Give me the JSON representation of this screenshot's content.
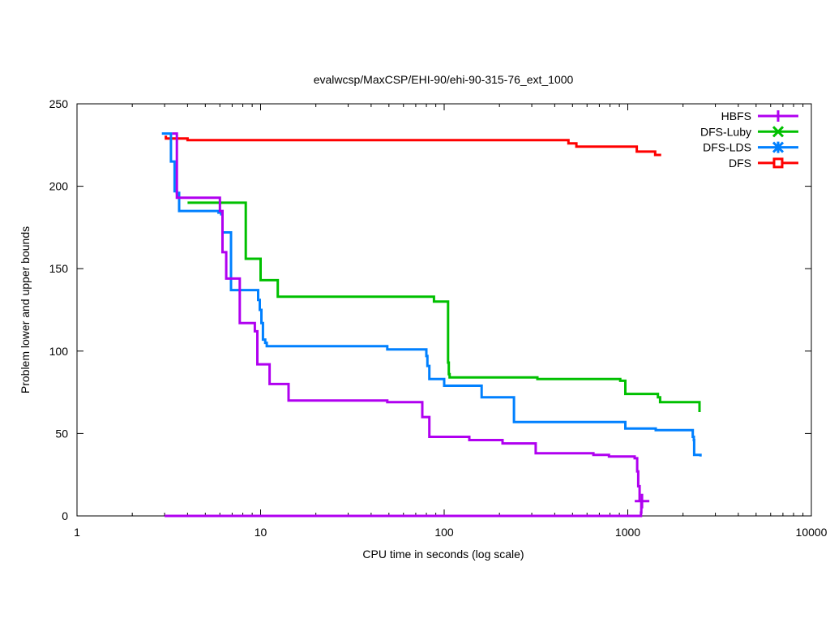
{
  "chart_data": {
    "type": "line",
    "title": "evalwcsp/MaxCSP/EHI-90/ehi-90-315-76_ext_1000",
    "xlabel": "CPU time in seconds (log scale)",
    "ylabel": "Problem lower and upper bounds",
    "xscale": "log",
    "xlim": [
      1,
      10000
    ],
    "ylim": [
      0,
      250
    ],
    "xticks": [
      1,
      10,
      100,
      1000,
      10000
    ],
    "xtick_labels": [
      "1",
      "10",
      "100",
      "1000",
      "10000"
    ],
    "yticks": [
      0,
      50,
      100,
      150,
      200,
      250
    ],
    "ytick_labels": [
      "0",
      "50",
      "100",
      "150",
      "200",
      "250"
    ],
    "grid": false,
    "legend_position": "top-right",
    "series": [
      {
        "name": "HBFS",
        "color": "#b000f0",
        "marker": "plus",
        "step": true,
        "upper": [
          [
            3.3,
            232
          ],
          [
            3.5,
            193
          ],
          [
            5.8,
            193
          ],
          [
            6.0,
            185
          ],
          [
            6.2,
            160
          ],
          [
            6.5,
            144
          ],
          [
            7.6,
            144
          ],
          [
            7.7,
            117
          ],
          [
            9.1,
            117
          ],
          [
            9.3,
            112
          ],
          [
            9.6,
            92
          ],
          [
            11.0,
            92
          ],
          [
            11.2,
            80
          ],
          [
            14.0,
            80
          ],
          [
            14.2,
            70
          ],
          [
            48,
            70
          ],
          [
            49,
            69
          ],
          [
            75,
            69
          ],
          [
            76,
            60
          ],
          [
            82,
            60
          ],
          [
            83,
            48
          ],
          [
            135,
            48
          ],
          [
            137,
            46
          ],
          [
            205,
            46
          ],
          [
            208,
            44
          ],
          [
            310,
            44
          ],
          [
            315,
            38
          ],
          [
            640,
            38
          ],
          [
            650,
            37
          ],
          [
            770,
            37
          ],
          [
            790,
            36
          ],
          [
            1080,
            36
          ],
          [
            1090,
            35
          ],
          [
            1120,
            35
          ],
          [
            1125,
            27
          ],
          [
            1140,
            18
          ],
          [
            1160,
            9
          ]
        ],
        "lower": [
          [
            3.0,
            0
          ],
          [
            1170,
            0
          ],
          [
            1180,
            2
          ],
          [
            1185,
            9
          ]
        ]
      },
      {
        "name": "DFS-Luby",
        "color": "#00c000",
        "marker": "x",
        "step": true,
        "upper": [
          [
            4.0,
            190
          ],
          [
            8.2,
            190
          ],
          [
            8.3,
            156
          ],
          [
            9.9,
            156
          ],
          [
            10.0,
            143
          ],
          [
            12.2,
            143
          ],
          [
            12.4,
            133
          ],
          [
            87,
            133
          ],
          [
            88,
            130
          ],
          [
            104,
            130
          ],
          [
            105,
            93
          ],
          [
            106,
            86
          ],
          [
            107,
            84
          ],
          [
            320,
            84
          ],
          [
            322,
            83
          ],
          [
            900,
            83
          ],
          [
            910,
            82
          ],
          [
            960,
            82
          ],
          [
            970,
            74
          ],
          [
            1450,
            74
          ],
          [
            1460,
            72
          ],
          [
            1500,
            69
          ],
          [
            2450,
            69
          ],
          [
            2460,
            63
          ]
        ]
      },
      {
        "name": "DFS-LDS",
        "color": "#0080ff",
        "marker": "asterisk",
        "step": true,
        "upper": [
          [
            2.9,
            232
          ],
          [
            3.2,
            232
          ],
          [
            3.25,
            215
          ],
          [
            3.4,
            197
          ],
          [
            3.5,
            196
          ],
          [
            3.6,
            185
          ],
          [
            5.8,
            185
          ],
          [
            5.9,
            184
          ],
          [
            6.1,
            183
          ],
          [
            6.2,
            172
          ],
          [
            6.8,
            172
          ],
          [
            6.9,
            137
          ],
          [
            9.6,
            137
          ],
          [
            9.7,
            131
          ],
          [
            9.9,
            125
          ],
          [
            10.1,
            117
          ],
          [
            10.3,
            107
          ],
          [
            10.6,
            105
          ],
          [
            10.8,
            103
          ],
          [
            48,
            103
          ],
          [
            49,
            101
          ],
          [
            79,
            101
          ],
          [
            80,
            97
          ],
          [
            81,
            91
          ],
          [
            83,
            83
          ],
          [
            98,
            83
          ],
          [
            100,
            79
          ],
          [
            158,
            79
          ],
          [
            160,
            72
          ],
          [
            238,
            72
          ],
          [
            240,
            57
          ],
          [
            960,
            57
          ],
          [
            970,
            53
          ],
          [
            1400,
            53
          ],
          [
            1420,
            52
          ],
          [
            2240,
            52
          ],
          [
            2260,
            48
          ],
          [
            2290,
            46
          ],
          [
            2300,
            37
          ],
          [
            2480,
            37
          ],
          [
            2490,
            36
          ]
        ],
        "lower": [
          [
            2.8,
            0
          ]
        ]
      },
      {
        "name": "DFS",
        "color": "#ff0000",
        "marker": "square",
        "step": true,
        "upper": [
          [
            3.0,
            230
          ],
          [
            3.05,
            229
          ],
          [
            3.9,
            229
          ],
          [
            4.0,
            228
          ],
          [
            470,
            228
          ],
          [
            475,
            226
          ],
          [
            520,
            226
          ],
          [
            525,
            224
          ],
          [
            1110,
            224
          ],
          [
            1120,
            221
          ],
          [
            1400,
            221
          ],
          [
            1410,
            219
          ],
          [
            1520,
            219
          ]
        ],
        "lower": [
          [
            3.0,
            0
          ]
        ]
      }
    ]
  }
}
